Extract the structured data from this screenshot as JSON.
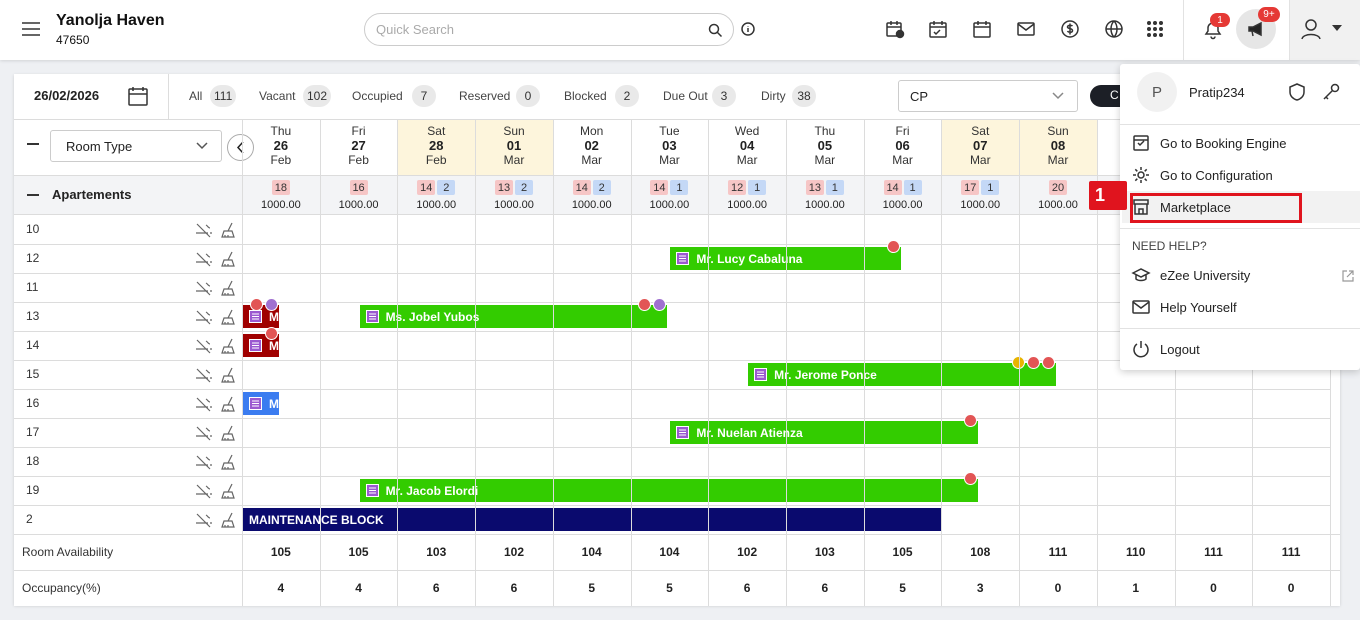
{
  "header": {
    "hotel_name": "Yanolja Haven",
    "hotel_id": "47650",
    "search_placeholder": "Quick Search",
    "notification_count": "1",
    "announcement_count": "9+"
  },
  "toolbar": {
    "date": "26/02/2026",
    "filters": [
      {
        "label": "All",
        "count": "111"
      },
      {
        "label": "Vacant",
        "count": "102"
      },
      {
        "label": "Occupied",
        "count": "7"
      },
      {
        "label": "Reserved",
        "count": "0"
      },
      {
        "label": "Blocked",
        "count": "2"
      },
      {
        "label": "Due Out",
        "count": "3"
      },
      {
        "label": "Dirty",
        "count": "38"
      }
    ],
    "rate_plan": "CP",
    "button": "C"
  },
  "grid": {
    "room_type_select": "Room Type",
    "dates": [
      {
        "dow": "Thu",
        "day": "26",
        "month": "Feb",
        "weekend": false
      },
      {
        "dow": "Fri",
        "day": "27",
        "month": "Feb",
        "weekend": false
      },
      {
        "dow": "Sat",
        "day": "28",
        "month": "Feb",
        "weekend": true
      },
      {
        "dow": "Sun",
        "day": "01",
        "month": "Mar",
        "weekend": true
      },
      {
        "dow": "Mon",
        "day": "02",
        "month": "Mar",
        "weekend": false
      },
      {
        "dow": "Tue",
        "day": "03",
        "month": "Mar",
        "weekend": false
      },
      {
        "dow": "Wed",
        "day": "04",
        "month": "Mar",
        "weekend": false
      },
      {
        "dow": "Thu",
        "day": "05",
        "month": "Mar",
        "weekend": false
      },
      {
        "dow": "Fri",
        "day": "06",
        "month": "Mar",
        "weekend": false
      },
      {
        "dow": "Sat",
        "day": "07",
        "month": "Mar",
        "weekend": true
      },
      {
        "dow": "Sun",
        "day": "08",
        "month": "Mar",
        "weekend": true
      }
    ],
    "section": {
      "name": "Apartements",
      "availability": [
        {
          "counts": [
            "18"
          ],
          "rate": "1000.00"
        },
        {
          "counts": [
            "16"
          ],
          "rate": "1000.00"
        },
        {
          "counts": [
            "14",
            "2"
          ],
          "rate": "1000.00"
        },
        {
          "counts": [
            "13",
            "2"
          ],
          "rate": "1000.00"
        },
        {
          "counts": [
            "14",
            "2"
          ],
          "rate": "1000.00"
        },
        {
          "counts": [
            "14",
            "1"
          ],
          "rate": "1000.00"
        },
        {
          "counts": [
            "12",
            "1"
          ],
          "rate": "1000.00"
        },
        {
          "counts": [
            "13",
            "1"
          ],
          "rate": "1000.00"
        },
        {
          "counts": [
            "14",
            "1"
          ],
          "rate": "1000.00"
        },
        {
          "counts": [
            "17",
            "1"
          ],
          "rate": "1000.00"
        },
        {
          "counts": [
            "20"
          ],
          "rate": "1000.00"
        }
      ]
    },
    "rooms": [
      {
        "number": "10",
        "bookings": []
      },
      {
        "number": "12",
        "bookings": [
          {
            "guest": "Mr. Lucy Cabaluna",
            "checkin": "03",
            "checkout": "06",
            "color": "#33cc00",
            "badges": [
              "#e25555"
            ]
          }
        ]
      },
      {
        "number": "11",
        "bookings": []
      },
      {
        "number": "13",
        "bookings": [
          {
            "guest": "M",
            "checkin": null,
            "checkout": "26",
            "color": "#a00000",
            "badges": [
              "#e25555",
              "#a070d0"
            ]
          },
          {
            "guest": "Ms. Jobel Yubos",
            "checkin": "27",
            "checkout": "03",
            "color": "#33cc00",
            "badges": [
              "#e25555",
              "#a070d0"
            ]
          }
        ]
      },
      {
        "number": "14",
        "bookings": [
          {
            "guest": "M",
            "checkin": null,
            "checkout": "26",
            "color": "#a00000",
            "badges": [
              "#e25555"
            ]
          }
        ]
      },
      {
        "number": "15",
        "bookings": [
          {
            "guest": "Mr. Jerome Ponce",
            "checkin": "04",
            "checkout": "08",
            "color": "#33cc00",
            "badges": [
              "#e8b400",
              "#e25555",
              "#e25555"
            ]
          }
        ]
      },
      {
        "number": "16",
        "bookings": [
          {
            "guest": "M",
            "checkin": null,
            "checkout": "26",
            "color": "#3b7cf0",
            "badges": []
          }
        ]
      },
      {
        "number": "17",
        "bookings": [
          {
            "guest": "Mr. Nuelan Atienza",
            "checkin": "03",
            "checkout": "07",
            "color": "#33cc00",
            "badges": [
              "#e25555"
            ]
          }
        ]
      },
      {
        "number": "18",
        "bookings": []
      },
      {
        "number": "19",
        "bookings": [
          {
            "guest": "Mr. Jacob Elordi",
            "checkin": "27",
            "checkout": "07",
            "color": "#33cc00",
            "badges": [
              "#e25555"
            ]
          }
        ]
      },
      {
        "number": "2",
        "blocks": [
          {
            "label": "MAINTENANCE BLOCK",
            "from": "26",
            "to": "07",
            "color": "#0a0a6e"
          }
        ],
        "bookings": []
      }
    ],
    "footer": [
      {
        "label": "Room Availability",
        "values": [
          "105",
          "105",
          "103",
          "102",
          "104",
          "104",
          "102",
          "103",
          "105",
          "108",
          "111",
          "110",
          "111",
          "111"
        ]
      },
      {
        "label": "Occupancy(%)",
        "values": [
          "4",
          "4",
          "6",
          "6",
          "5",
          "5",
          "6",
          "6",
          "5",
          "3",
          "0",
          "1",
          "0",
          "0"
        ]
      }
    ]
  },
  "user_menu": {
    "initial": "P",
    "username": "Pratip234",
    "items": [
      "Go to Booking Engine",
      "Go to Configuration",
      "Marketplace"
    ],
    "help_heading": "NEED HELP?",
    "help_items": [
      "eZee University",
      "Help Yourself"
    ],
    "logout": "Logout",
    "highlighted": 1
  },
  "annotation": "1"
}
